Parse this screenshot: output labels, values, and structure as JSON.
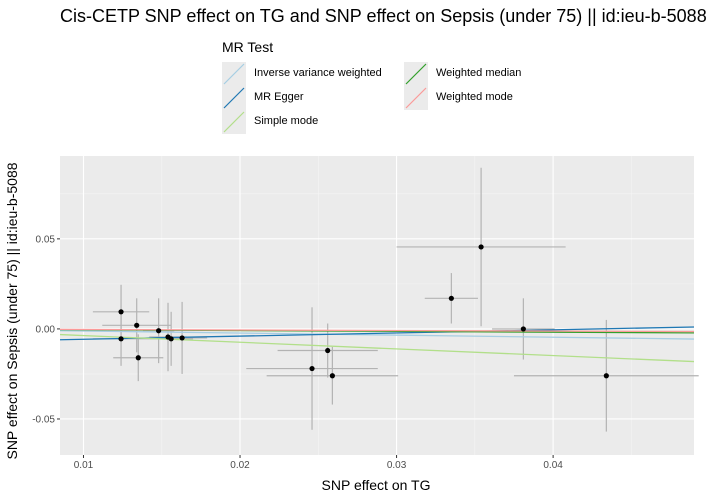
{
  "chart_data": {
    "type": "scatter",
    "title": "Cis-CETP SNP effect on TG and SNP effect on Sepsis (under 75) || id:ieu-b-5088",
    "xlabel": "SNP effect on TG",
    "ylabel": "SNP effect on Sepsis (under 75) || id:ieu-b-5088",
    "xlim": [
      0.0085,
      0.049
    ],
    "ylim": [
      -0.07,
      0.096
    ],
    "x_ticks": [
      0.01,
      0.02,
      0.03,
      0.04
    ],
    "x_tick_labels": [
      "0.01",
      "0.02",
      "0.03",
      "0.04"
    ],
    "y_ticks": [
      -0.05,
      0.0,
      0.05
    ],
    "y_tick_labels": [
      "-0.05",
      "0.00",
      "0.05"
    ],
    "grid": true,
    "legend": {
      "title": "MR Test",
      "placement": "top",
      "entries": [
        {
          "name": "Inverse variance weighted",
          "color": "#a6cee3"
        },
        {
          "name": "MR Egger",
          "color": "#1f78b4"
        },
        {
          "name": "Simple mode",
          "color": "#b2df8a"
        },
        {
          "name": "Weighted median",
          "color": "#33a02c"
        },
        {
          "name": "Weighted mode",
          "color": "#fb9a99"
        }
      ]
    },
    "points": [
      {
        "x": 0.0124,
        "y": 0.0095,
        "xerr": 0.0018,
        "yerr": 0.015
      },
      {
        "x": 0.0124,
        "y": -0.0055,
        "xerr": 0.0018,
        "yerr": 0.015
      },
      {
        "x": 0.0134,
        "y": 0.002,
        "xerr": 0.0022,
        "yerr": 0.015
      },
      {
        "x": 0.0135,
        "y": -0.016,
        "xerr": 0.0016,
        "yerr": 0.013
      },
      {
        "x": 0.0148,
        "y": -0.001,
        "xerr": 0.001,
        "yerr": 0.018
      },
      {
        "x": 0.0154,
        "y": -0.0045,
        "xerr": 0.0012,
        "yerr": 0.019
      },
      {
        "x": 0.0156,
        "y": -0.0055,
        "xerr": 0.0014,
        "yerr": 0.015
      },
      {
        "x": 0.0163,
        "y": -0.005,
        "xerr": 0.0016,
        "yerr": 0.02
      },
      {
        "x": 0.0246,
        "y": -0.022,
        "xerr": 0.0042,
        "yerr": 0.034
      },
      {
        "x": 0.0256,
        "y": -0.012,
        "xerr": 0.0032,
        "yerr": 0.015
      },
      {
        "x": 0.0259,
        "y": -0.026,
        "xerr": 0.0042,
        "yerr": 0.016
      },
      {
        "x": 0.0335,
        "y": 0.017,
        "xerr": 0.0017,
        "yerr": 0.014
      },
      {
        "x": 0.0354,
        "y": 0.0455,
        "xerr": 0.0054,
        "yerr": 0.044
      },
      {
        "x": 0.0381,
        "y": 0.0,
        "xerr": 0.002,
        "yerr": 0.017
      },
      {
        "x": 0.0434,
        "y": -0.026,
        "xerr": 0.0059,
        "yerr": 0.031
      }
    ],
    "lines": [
      {
        "name": "Inverse variance weighted",
        "color": "#a6cee3",
        "intercept": 0.0,
        "slope": -0.115
      },
      {
        "name": "MR Egger",
        "color": "#1f78b4",
        "intercept": -0.0075,
        "slope": 0.175
      },
      {
        "name": "Simple mode",
        "color": "#b2df8a",
        "intercept": 0.0,
        "slope": -0.37
      },
      {
        "name": "Weighted median",
        "color": "#33a02c",
        "intercept": 0.0,
        "slope": -0.045
      },
      {
        "name": "Weighted mode",
        "color": "#fb9a99",
        "intercept": 0.0,
        "slope": -0.03
      }
    ]
  }
}
